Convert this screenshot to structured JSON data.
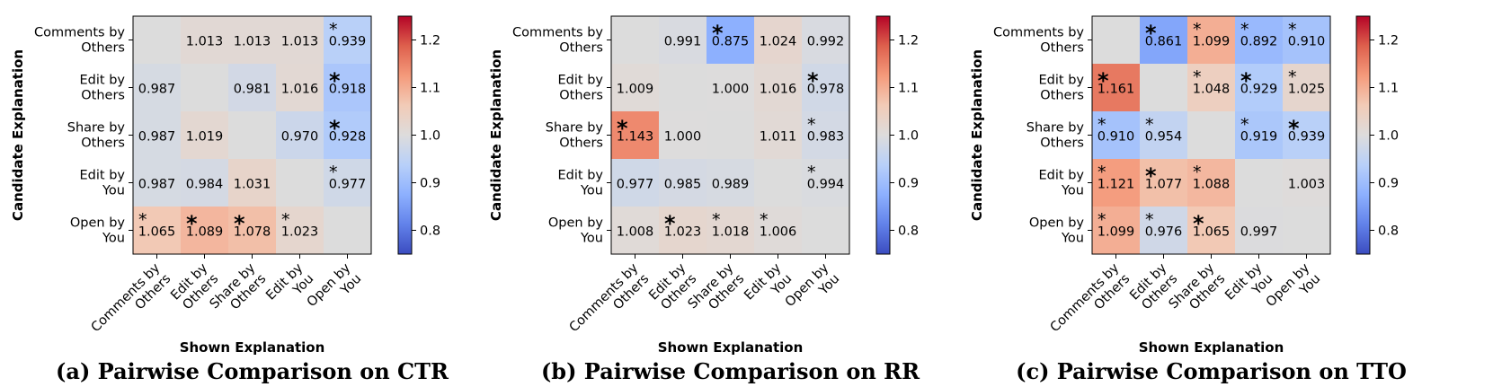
{
  "colormap": {
    "name": "coolwarm",
    "vmin": 0.75,
    "vmax": 1.25,
    "nan_color": "#dcdcdc",
    "stops": [
      "#3b4cc0",
      "#6282ea",
      "#8db0fe",
      "#b8d0f9",
      "#dddcdc",
      "#f2cbb7",
      "#f49a7b",
      "#de604d",
      "#b40426"
    ],
    "ticks": [
      0.8,
      0.9,
      1.0,
      1.1,
      1.2
    ],
    "tick_labels": [
      "0.8",
      "0.9",
      "1.0",
      "1.1",
      "1.2"
    ]
  },
  "chart_data": [
    {
      "type": "heatmap",
      "caption": "(a) Pairwise Comparison on CTR",
      "xlabel": "Shown Explanation",
      "ylabel": "Candidate Explanation",
      "x_categories": [
        "Comments by Others",
        "Edit by Others",
        "Share by Others",
        "Edit by You",
        "Open by You"
      ],
      "y_categories": [
        "Comments by Others",
        "Edit by Others",
        "Share by Others",
        "Edit by You",
        "Open by You"
      ],
      "values": [
        [
          null,
          1.013,
          1.013,
          1.013,
          0.939
        ],
        [
          0.987,
          null,
          0.981,
          1.016,
          0.918
        ],
        [
          0.987,
          1.019,
          null,
          0.97,
          0.928
        ],
        [
          0.987,
          0.984,
          1.031,
          null,
          0.977
        ],
        [
          1.065,
          1.089,
          1.078,
          1.023,
          null
        ]
      ],
      "value_labels": [
        [
          "",
          "1.013",
          "1.013",
          "1.013",
          "0.939"
        ],
        [
          "0.987",
          "",
          "0.981",
          "1.016",
          "0.918"
        ],
        [
          "0.987",
          "1.019",
          "",
          "0.970",
          "0.928"
        ],
        [
          "0.987",
          "0.984",
          "1.031",
          "",
          "0.977"
        ],
        [
          "1.065",
          "1.089",
          "1.078",
          "1.023",
          ""
        ]
      ],
      "significance": [
        [
          "",
          "",
          "",
          "",
          "*"
        ],
        [
          "",
          "",
          "",
          "",
          "**"
        ],
        [
          "",
          "",
          "",
          "",
          "**"
        ],
        [
          "",
          "",
          "",
          "",
          "*"
        ],
        [
          "*",
          "**",
          "**",
          "*",
          ""
        ]
      ],
      "colorbar": {
        "vmin": 0.75,
        "vmax": 1.25,
        "ticks": [
          "0.8",
          "0.9",
          "1.0",
          "1.1",
          "1.2"
        ]
      }
    },
    {
      "type": "heatmap",
      "caption": "(b) Pairwise Comparison on RR",
      "xlabel": "Shown Explanation",
      "ylabel": "Candidate Explanation",
      "x_categories": [
        "Comments by Others",
        "Edit by Others",
        "Share by Others",
        "Edit by You",
        "Open by You"
      ],
      "y_categories": [
        "Comments by Others",
        "Edit by Others",
        "Share by Others",
        "Edit by You",
        "Open by You"
      ],
      "values": [
        [
          null,
          0.991,
          0.875,
          1.024,
          0.992
        ],
        [
          1.009,
          null,
          1.0,
          1.016,
          0.978
        ],
        [
          1.143,
          1.0,
          null,
          1.011,
          0.983
        ],
        [
          0.977,
          0.985,
          0.989,
          null,
          0.994
        ],
        [
          1.008,
          1.023,
          1.018,
          1.006,
          null
        ]
      ],
      "value_labels": [
        [
          "",
          "0.991",
          "0.875",
          "1.024",
          "0.992"
        ],
        [
          "1.009",
          "",
          "1.000",
          "1.016",
          "0.978"
        ],
        [
          "1.143",
          "1.000",
          "",
          "1.011",
          "0.983"
        ],
        [
          "0.977",
          "0.985",
          "0.989",
          "",
          "0.994"
        ],
        [
          "1.008",
          "1.023",
          "1.018",
          "1.006",
          ""
        ]
      ],
      "significance": [
        [
          "",
          "",
          "**",
          "",
          ""
        ],
        [
          "",
          "",
          "",
          "",
          "**"
        ],
        [
          "**",
          "",
          "",
          "",
          "*"
        ],
        [
          "",
          "",
          "",
          "",
          "*"
        ],
        [
          "",
          "**",
          "*",
          "*",
          ""
        ]
      ],
      "colorbar": {
        "vmin": 0.75,
        "vmax": 1.25,
        "ticks": [
          "0.8",
          "0.9",
          "1.0",
          "1.1",
          "1.2"
        ]
      }
    },
    {
      "type": "heatmap",
      "caption": "(c) Pairwise Comparison on TTO",
      "xlabel": "Shown Explanation",
      "ylabel": "Candidate Explanation",
      "x_categories": [
        "Comments by Others",
        "Edit by Others",
        "Share by Others",
        "Edit by You",
        "Open by You"
      ],
      "y_categories": [
        "Comments by Others",
        "Edit by Others",
        "Share by Others",
        "Edit by You",
        "Open by You"
      ],
      "values": [
        [
          null,
          0.861,
          1.099,
          0.892,
          0.91
        ],
        [
          1.161,
          null,
          1.048,
          0.929,
          1.025
        ],
        [
          0.91,
          0.954,
          null,
          0.919,
          0.939
        ],
        [
          1.121,
          1.077,
          1.088,
          null,
          1.003
        ],
        [
          1.099,
          0.976,
          1.065,
          0.997,
          null
        ]
      ],
      "value_labels": [
        [
          "",
          "0.861",
          "1.099",
          "0.892",
          "0.910"
        ],
        [
          "1.161",
          "",
          "1.048",
          "0.929",
          "1.025"
        ],
        [
          "0.910",
          "0.954",
          "",
          "0.919",
          "0.939"
        ],
        [
          "1.121",
          "1.077",
          "1.088",
          "",
          "1.003"
        ],
        [
          "1.099",
          "0.976",
          "1.065",
          "0.997",
          ""
        ]
      ],
      "significance": [
        [
          "",
          "**",
          "*",
          "*",
          "*"
        ],
        [
          "**",
          "",
          "*",
          "**",
          "*"
        ],
        [
          "*",
          "*",
          "",
          "*",
          "**"
        ],
        [
          "*",
          "**",
          "*",
          "",
          ""
        ],
        [
          "*",
          "*",
          "**",
          "",
          ""
        ]
      ],
      "colorbar": {
        "vmin": 0.75,
        "vmax": 1.25,
        "ticks": [
          "0.8",
          "0.9",
          "1.0",
          "1.1",
          "1.2"
        ]
      }
    }
  ]
}
